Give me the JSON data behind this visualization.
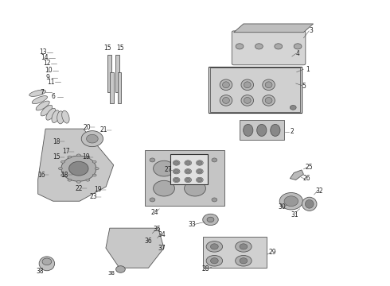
{
  "background_color": "#ffffff",
  "fig_width": 4.9,
  "fig_height": 3.6,
  "dpi": 100,
  "line_color": "#555555",
  "number_color": "#222222",
  "number_fontsize": 5.5,
  "line_width": 0.6
}
